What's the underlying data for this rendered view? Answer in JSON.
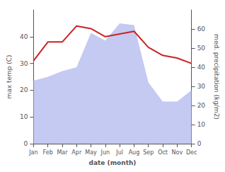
{
  "chart_data": {
    "type": "line",
    "categories": [
      "Jan",
      "Feb",
      "Mar",
      "Apr",
      "May",
      "Jun",
      "Jul",
      "Aug",
      "Sep",
      "Oct",
      "Nov",
      "Dec"
    ],
    "series": [
      {
        "type": "area",
        "color": "#b0b8ee",
        "axis": "y2",
        "values": [
          33,
          35,
          38,
          40,
          58,
          54,
          63,
          62,
          32,
          22,
          22,
          28
        ]
      },
      {
        "type": "line",
        "color": "#cc2222",
        "values": [
          31,
          38,
          38,
          44,
          43,
          40,
          41,
          42,
          36,
          33,
          32,
          30
        ]
      }
    ],
    "xlabel": "date (month)",
    "ylabel": "max temp (C)",
    "y2label": "med. precipitation (kg/m2)",
    "ylim": [
      0,
      50
    ],
    "yticks": [
      0,
      10,
      20,
      30,
      40
    ],
    "y2lim": [
      0,
      70
    ],
    "y2ticks": [
      0,
      10,
      20,
      30,
      40,
      50,
      60
    ],
    "grid": false
  }
}
